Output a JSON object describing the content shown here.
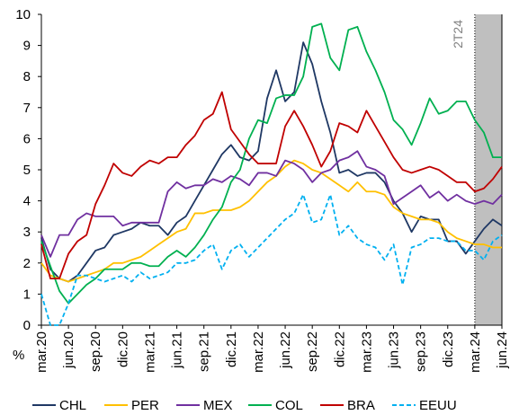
{
  "chart_data": {
    "type": "line",
    "y_unit": "%",
    "categories": [
      "mar.20",
      null,
      null,
      "jun.20",
      null,
      null,
      "sep.20",
      null,
      null,
      "dic.20",
      null,
      null,
      "mar.21",
      null,
      null,
      "jun.21",
      null,
      null,
      "sep.21",
      null,
      null,
      "dic.21",
      null,
      null,
      "mar.22",
      null,
      null,
      "jun.22",
      null,
      null,
      "sep.22",
      null,
      null,
      "dic.22",
      null,
      null,
      "mar.23",
      null,
      null,
      "jun.23",
      null,
      null,
      "sep.23",
      null,
      null,
      "dic.23",
      null,
      null,
      "mar.24",
      null,
      null,
      "jun.24"
    ],
    "series": [
      {
        "name": "CHL",
        "color": "#1f3864",
        "values": [
          2.8,
          1.8,
          1.5,
          1.4,
          1.6,
          2.0,
          2.4,
          2.5,
          2.9,
          3.0,
          3.1,
          3.3,
          3.2,
          3.2,
          2.9,
          3.3,
          3.5,
          4.0,
          4.5,
          5.0,
          5.5,
          5.8,
          5.4,
          5.3,
          5.6,
          7.3,
          8.2,
          7.2,
          7.5,
          9.1,
          8.4,
          7.2,
          6.2,
          4.9,
          5.0,
          4.8,
          4.9,
          4.9,
          4.6,
          4.0,
          3.6,
          3.0,
          3.5,
          3.4,
          3.4,
          2.7,
          2.7,
          2.3,
          2.7,
          3.1,
          3.4,
          3.2
        ]
      },
      {
        "name": "PER",
        "color": "#ffc000",
        "values": [
          2.0,
          1.6,
          1.5,
          1.4,
          1.5,
          1.6,
          1.7,
          1.8,
          2.0,
          2.0,
          2.1,
          2.2,
          2.4,
          2.6,
          2.8,
          3.0,
          3.1,
          3.6,
          3.6,
          3.7,
          3.7,
          3.7,
          3.8,
          4.0,
          4.3,
          4.6,
          4.8,
          5.1,
          5.3,
          5.2,
          5.0,
          4.9,
          4.7,
          4.5,
          4.3,
          4.6,
          4.3,
          4.3,
          4.2,
          3.8,
          3.6,
          3.5,
          3.4,
          3.4,
          3.3,
          3.0,
          2.8,
          2.7,
          2.6,
          2.6,
          2.5,
          2.5
        ]
      },
      {
        "name": "MEX",
        "color": "#7030a0",
        "values": [
          2.9,
          2.2,
          2.9,
          2.9,
          3.4,
          3.6,
          3.5,
          3.5,
          3.5,
          3.2,
          3.3,
          3.3,
          3.3,
          3.3,
          4.3,
          4.6,
          4.4,
          4.5,
          4.5,
          4.7,
          4.6,
          4.8,
          4.7,
          4.5,
          4.9,
          4.9,
          4.8,
          5.3,
          5.2,
          5.0,
          4.6,
          4.9,
          5.0,
          5.3,
          5.4,
          5.6,
          5.1,
          5.0,
          4.8,
          3.9,
          4.1,
          4.3,
          4.5,
          4.1,
          4.3,
          4.0,
          4.2,
          4.0,
          3.9,
          4.0,
          3.9,
          4.2
        ]
      },
      {
        "name": "COL",
        "color": "#00b050",
        "values": [
          2.7,
          1.9,
          1.1,
          0.7,
          1.0,
          1.3,
          1.5,
          1.8,
          1.8,
          1.8,
          2.0,
          2.0,
          1.9,
          1.9,
          2.2,
          2.4,
          2.2,
          2.5,
          2.9,
          3.4,
          3.8,
          4.6,
          5.0,
          6.0,
          6.6,
          6.5,
          7.3,
          7.4,
          7.4,
          8.0,
          9.6,
          9.7,
          8.6,
          8.2,
          9.5,
          9.6,
          8.8,
          8.2,
          7.5,
          6.6,
          6.3,
          5.8,
          6.5,
          7.3,
          6.8,
          6.9,
          7.2,
          7.2,
          6.6,
          6.2,
          5.4,
          5.4
        ]
      },
      {
        "name": "BRA",
        "color": "#c00000",
        "values": [
          2.6,
          1.5,
          1.5,
          2.3,
          2.7,
          2.9,
          3.9,
          4.5,
          5.2,
          4.9,
          4.8,
          5.1,
          5.3,
          5.2,
          5.4,
          5.4,
          5.8,
          6.1,
          6.6,
          6.8,
          7.5,
          6.3,
          5.9,
          5.5,
          5.2,
          5.2,
          5.2,
          6.4,
          6.9,
          6.4,
          5.8,
          5.1,
          5.6,
          6.5,
          6.4,
          6.2,
          6.9,
          6.4,
          5.9,
          5.4,
          5.0,
          4.9,
          5.0,
          5.1,
          5.0,
          4.8,
          4.6,
          4.6,
          4.3,
          4.4,
          4.7,
          5.1
        ]
      },
      {
        "name": "EEUU",
        "color": "#00b0f0",
        "dashed": true,
        "values": [
          1.0,
          0.0,
          0.0,
          0.7,
          1.6,
          1.6,
          1.5,
          1.4,
          1.5,
          1.6,
          1.4,
          1.7,
          1.5,
          1.6,
          1.7,
          2.0,
          2.0,
          2.1,
          2.4,
          2.6,
          1.8,
          2.4,
          2.6,
          2.2,
          2.5,
          2.8,
          3.1,
          3.4,
          3.6,
          4.2,
          3.3,
          3.4,
          4.2,
          2.9,
          3.2,
          2.8,
          2.6,
          2.5,
          2.1,
          2.6,
          1.3,
          2.5,
          2.6,
          2.8,
          2.8,
          2.7,
          2.7,
          2.4,
          2.4,
          2.1,
          2.7,
          2.9
        ]
      }
    ],
    "ylim": [
      0,
      10
    ],
    "yticks": [
      0,
      1,
      2,
      3,
      4,
      5,
      6,
      7,
      8,
      9,
      10
    ],
    "shade": {
      "label": "2T24",
      "from": "mar.24",
      "to": "jun.24",
      "color": "#bfbfbf"
    },
    "legend": "bottom"
  }
}
